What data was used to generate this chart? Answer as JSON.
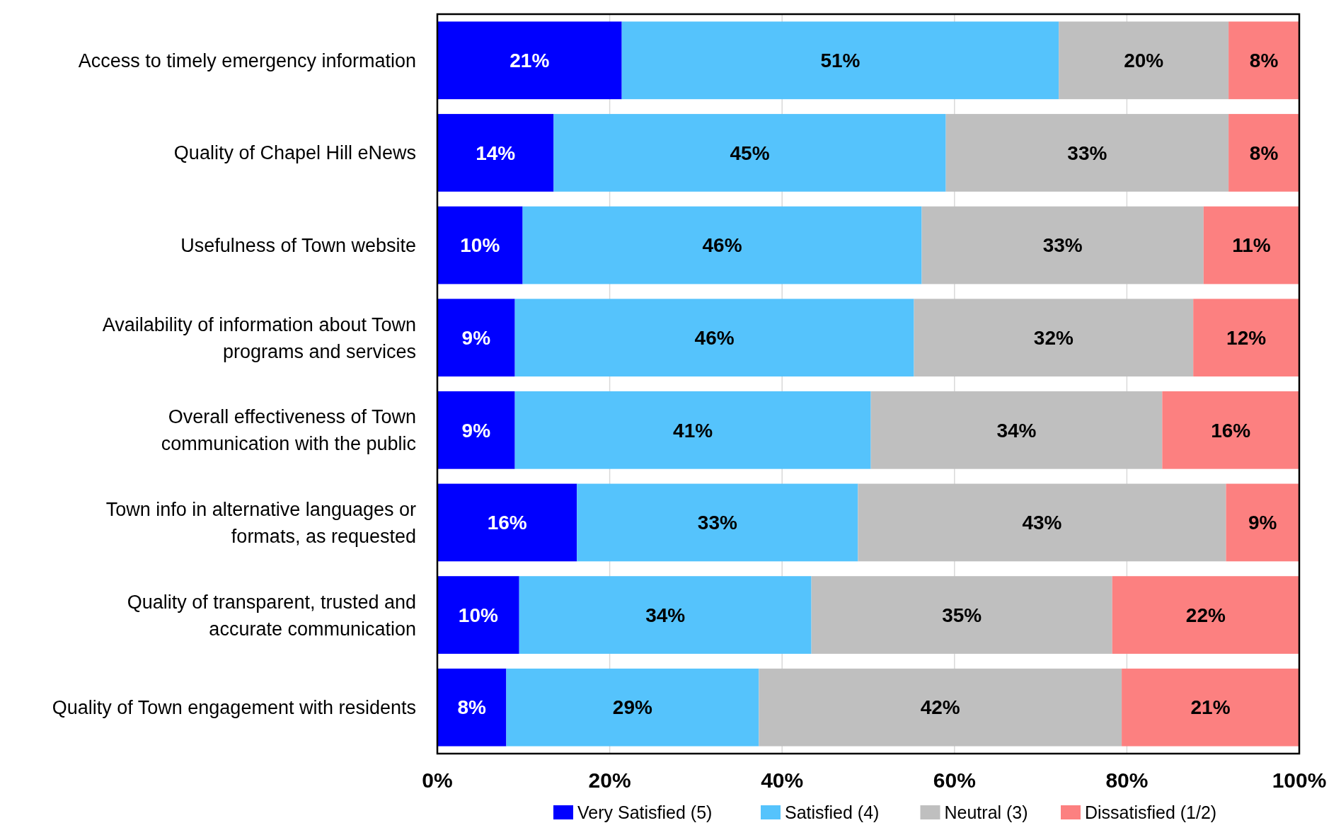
{
  "chart_data": {
    "type": "bar",
    "orientation": "horizontal",
    "stacked": true,
    "categories": [
      "Access to timely emergency information",
      "Quality of Chapel Hill eNews",
      "Usefulness of Town website",
      "Availability of information about Town programs and services",
      "Overall effectiveness of Town communication with the public",
      "Town info in alternative languages or formats, as requested",
      "Quality of transparent, trusted and accurate communication",
      "Quality of Town engagement with residents"
    ],
    "series": [
      {
        "name": "Very Satisfied (5)",
        "color": "#0000ff",
        "values": [
          21.4,
          13.5,
          9.9,
          9.0,
          9.0,
          16.2,
          9.5,
          8.0
        ],
        "value_labels": [
          "21%",
          "14%",
          "10%",
          "9%",
          "9%",
          "16%",
          "10%",
          "8%"
        ]
      },
      {
        "name": "Satisfied (4)",
        "color": "#55c3fc",
        "values": [
          50.7,
          45.5,
          46.3,
          46.3,
          41.3,
          32.6,
          33.9,
          29.3
        ],
        "value_labels": [
          "51%",
          "45%",
          "46%",
          "46%",
          "41%",
          "33%",
          "34%",
          "29%"
        ]
      },
      {
        "name": "Neutral (3)",
        "color": "#bfbfbf",
        "values": [
          19.7,
          32.8,
          32.7,
          32.4,
          33.8,
          42.7,
          34.9,
          42.1
        ],
        "value_labels": [
          "20%",
          "33%",
          "33%",
          "32%",
          "34%",
          "43%",
          "35%",
          "42%"
        ]
      },
      {
        "name": "Dissatisfied (1/2)",
        "color": "#fc8080",
        "values": [
          8.2,
          8.2,
          11.1,
          12.3,
          15.9,
          8.5,
          21.7,
          20.6
        ],
        "value_labels": [
          "8%",
          "8%",
          "11%",
          "12%",
          "16%",
          "9%",
          "22%",
          "21%"
        ]
      }
    ],
    "xlim": [
      0,
      100
    ],
    "xticks": [
      {
        "value": 0,
        "label": "0%"
      },
      {
        "value": 20,
        "label": "20%"
      },
      {
        "value": 40,
        "label": "40%"
      },
      {
        "value": 60,
        "label": "60%"
      },
      {
        "value": 80,
        "label": "80%"
      },
      {
        "value": 100,
        "label": "100%"
      }
    ],
    "grid": "x",
    "legend": "bottom"
  }
}
